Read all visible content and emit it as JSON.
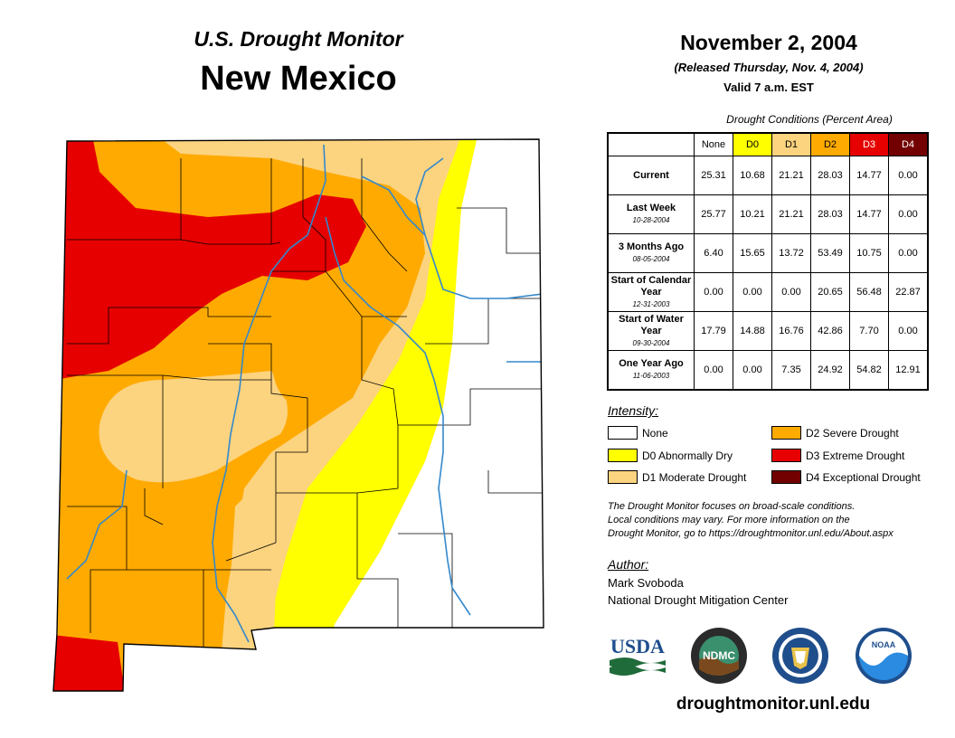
{
  "header": {
    "subtitle": "U.S. Drought Monitor",
    "state": "New Mexico",
    "date": "November 2, 2004",
    "released": "(Released Thursday, Nov. 4, 2004)",
    "valid": "Valid 7 a.m. EST"
  },
  "table": {
    "caption": "Drought Conditions (Percent Area)",
    "columns": [
      "None",
      "D0",
      "D1",
      "D2",
      "D3",
      "D4"
    ],
    "column_colors": [
      "#ffffff",
      "#ffff00",
      "#fcd37f",
      "#ffaa00",
      "#e60000",
      "#730000"
    ],
    "rows": [
      {
        "label": "Current",
        "date": "",
        "values": [
          "25.31",
          "10.68",
          "21.21",
          "28.03",
          "14.77",
          "0.00"
        ]
      },
      {
        "label": "Last Week",
        "date": "10-28-2004",
        "values": [
          "25.77",
          "10.21",
          "21.21",
          "28.03",
          "14.77",
          "0.00"
        ]
      },
      {
        "label": "3 Months Ago",
        "date": "08-05-2004",
        "values": [
          "6.40",
          "15.65",
          "13.72",
          "53.49",
          "10.75",
          "0.00"
        ]
      },
      {
        "label": "Start of Calendar Year",
        "date": "12-31-2003",
        "values": [
          "0.00",
          "0.00",
          "0.00",
          "20.65",
          "56.48",
          "22.87"
        ]
      },
      {
        "label": "Start of Water Year",
        "date": "09-30-2004",
        "values": [
          "17.79",
          "14.88",
          "16.76",
          "42.86",
          "7.70",
          "0.00"
        ]
      },
      {
        "label": "One Year Ago",
        "date": "11-06-2003",
        "values": [
          "0.00",
          "0.00",
          "7.35",
          "24.92",
          "54.82",
          "12.91"
        ]
      }
    ]
  },
  "legend": {
    "heading": "Intensity:",
    "items": [
      {
        "label": "None",
        "color": "#ffffff"
      },
      {
        "label": "D0 Abnormally Dry",
        "color": "#ffff00"
      },
      {
        "label": "D1 Moderate Drought",
        "color": "#fcd37f"
      },
      {
        "label": "D2 Severe Drought",
        "color": "#ffaa00"
      },
      {
        "label": "D3 Extreme Drought",
        "color": "#e60000"
      },
      {
        "label": "D4 Exceptional Drought",
        "color": "#730000"
      }
    ]
  },
  "note": {
    "line1": "The Drought Monitor focuses on broad-scale conditions.",
    "line2": "Local conditions may vary. For more information on the",
    "line3": "Drought Monitor, go to https://droughtmonitor.unl.edu/About.aspx"
  },
  "author": {
    "heading": "Author:",
    "name": "Mark Svoboda",
    "org": "National Drought Mitigation Center"
  },
  "logos": {
    "usda": "USDA",
    "ndmc": "NDMC",
    "noaa": "NOAA",
    "doc": "commerce-seal-icon"
  },
  "url": "droughtmonitor.unl.edu"
}
